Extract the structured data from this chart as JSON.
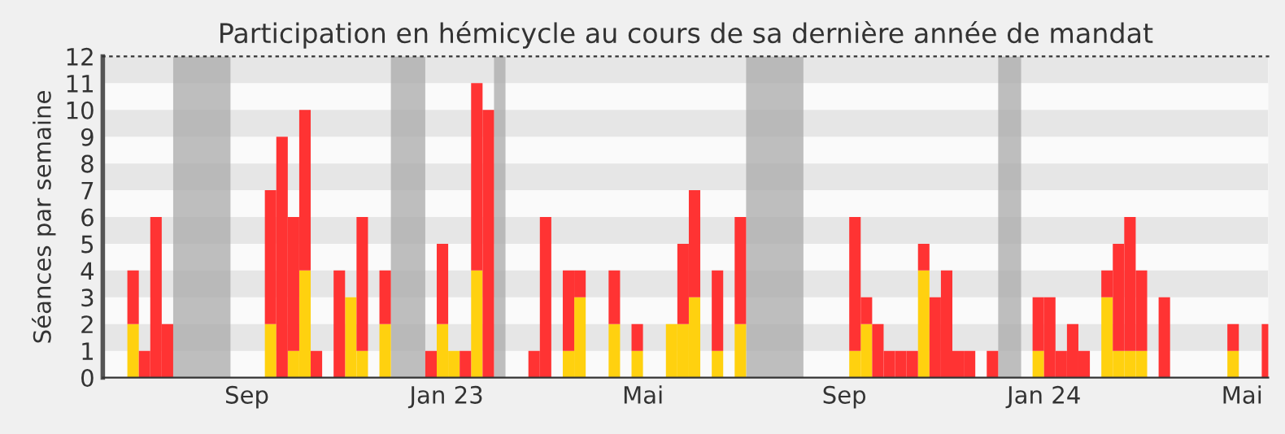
{
  "chart_data": {
    "type": "bar",
    "title": "Participation en hémicycle au cours de sa dernière année de mandat",
    "ylabel": "Séances par semaine",
    "stacked": true,
    "x": [
      "2022-06-20",
      "2022-06-27",
      "2022-07-04",
      "2022-07-11",
      "2022-09-12",
      "2022-09-19",
      "2022-09-26",
      "2022-10-03",
      "2022-10-10",
      "2022-10-24",
      "2022-10-31",
      "2022-11-07",
      "2022-11-21",
      "2022-12-19",
      "2022-12-26",
      "2023-01-02",
      "2023-01-09",
      "2023-01-16",
      "2023-01-23",
      "2023-02-20",
      "2023-02-27",
      "2023-03-13",
      "2023-03-20",
      "2023-04-10",
      "2023-04-24",
      "2023-05-15",
      "2023-05-22",
      "2023-05-29",
      "2023-06-12",
      "2023-06-26",
      "2023-09-04",
      "2023-09-11",
      "2023-09-18",
      "2023-09-25",
      "2023-10-02",
      "2023-10-09",
      "2023-10-16",
      "2023-10-23",
      "2023-10-30",
      "2023-11-06",
      "2023-11-13",
      "2023-11-27",
      "2023-12-25",
      "2024-01-01",
      "2024-01-08",
      "2024-01-15",
      "2024-01-22",
      "2024-02-05",
      "2024-02-12",
      "2024-02-19",
      "2024-02-26",
      "2024-03-11",
      "2024-04-22",
      "2024-05-13"
    ],
    "series": [
      {
        "color": "#ffd10f",
        "values": [
          2,
          0,
          0,
          0,
          2,
          0,
          1,
          4,
          0,
          0,
          3,
          1,
          2,
          0,
          2,
          1,
          0,
          4,
          0,
          0,
          0,
          1,
          3,
          2,
          1,
          2,
          2,
          3,
          1,
          2,
          1,
          2,
          0,
          0,
          0,
          0,
          4,
          0,
          0,
          0,
          0,
          0,
          1,
          0,
          0,
          0,
          0,
          3,
          1,
          1,
          1,
          0,
          1,
          0
        ]
      },
      {
        "color": "#ff3333",
        "values": [
          2,
          1,
          6,
          2,
          5,
          9,
          5,
          6,
          1,
          4,
          0,
          5,
          2,
          1,
          3,
          0,
          1,
          7,
          10,
          1,
          6,
          3,
          1,
          2,
          1,
          0,
          3,
          4,
          3,
          4,
          5,
          1,
          2,
          1,
          1,
          1,
          1,
          3,
          4,
          1,
          1,
          1,
          2,
          3,
          1,
          2,
          1,
          1,
          4,
          5,
          3,
          3,
          1,
          2
        ]
      }
    ],
    "xlim": [
      "2022-06-05",
      "2024-05-17"
    ],
    "xticks": [
      {
        "value": "2022-09-01",
        "label": "Sep"
      },
      {
        "value": "2023-01-01",
        "label": "Jan 23"
      },
      {
        "value": "2023-05-01",
        "label": "Mai"
      },
      {
        "value": "2023-09-01",
        "label": "Sep"
      },
      {
        "value": "2024-01-01",
        "label": "Jan 24"
      },
      {
        "value": "2024-05-01",
        "label": "Mai"
      }
    ],
    "ylim": [
      0,
      12
    ],
    "yticks": [
      0,
      1,
      2,
      3,
      4,
      5,
      6,
      7,
      8,
      9,
      10,
      11,
      12
    ],
    "bands": [
      {
        "axis": "x",
        "from": "2022-07-18",
        "to": "2022-08-22",
        "color": "#aaaaaa"
      },
      {
        "axis": "x",
        "from": "2022-11-28",
        "to": "2022-12-19",
        "color": "#aaaaaa"
      },
      {
        "axis": "x",
        "from": "2023-01-30",
        "to": "2023-02-06",
        "color": "#aaaaaa"
      },
      {
        "axis": "x",
        "from": "2023-07-03",
        "to": "2023-08-07",
        "color": "#aaaaaa"
      },
      {
        "axis": "x",
        "from": "2023-12-04",
        "to": "2023-12-18",
        "color": "#aaaaaa"
      }
    ]
  }
}
